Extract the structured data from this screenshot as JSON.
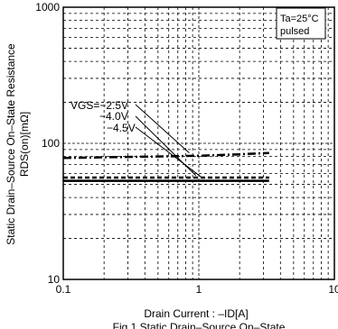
{
  "chart_data": {
    "type": "line",
    "x_scale": "log",
    "y_scale": "log",
    "xlim": [
      0.1,
      10
    ],
    "ylim": [
      10,
      1000
    ],
    "grid": true,
    "xlabel": "Drain Current : –ID[A]",
    "ylabel_line1": "Static Drain–Source On–State Resistance",
    "ylabel_line2": "RDS(on)[mΩ]",
    "conditions": [
      "Ta=25°C",
      "pulsed"
    ],
    "legend_position": "top-right",
    "x_ticks": [
      {
        "value": 0.1,
        "label": "0.1"
      },
      {
        "value": 1,
        "label": "1"
      },
      {
        "value": 10,
        "label": "10"
      }
    ],
    "y_ticks": [
      {
        "value": 10,
        "label": "10"
      },
      {
        "value": 100,
        "label": "100"
      },
      {
        "value": 1000,
        "label": "1000"
      }
    ],
    "series": [
      {
        "name": "VGS=−2.5V",
        "label": "VGS=−2.5V",
        "dash": "dashdot",
        "x": [
          0.1,
          0.2,
          0.5,
          1,
          2,
          3.3
        ],
        "y": [
          78,
          79,
          80,
          81,
          83,
          85
        ]
      },
      {
        "name": "VGS=−4.0V",
        "label": "−4.0V",
        "dash": "dashed",
        "x": [
          0.1,
          0.2,
          0.5,
          1,
          2,
          3.3
        ],
        "y": [
          56,
          56,
          56,
          56,
          56,
          56
        ]
      },
      {
        "name": "VGS=−4.5V",
        "label": "−4.5V",
        "dash": "solid",
        "x": [
          0.1,
          0.2,
          0.5,
          1,
          2,
          3.3
        ],
        "y": [
          53,
          53,
          53,
          53,
          53,
          53
        ]
      }
    ],
    "annotation_points": [
      {
        "x": 0.85,
        "y": 85
      },
      {
        "x": 0.95,
        "y": 58
      },
      {
        "x": 1.08,
        "y": 55
      }
    ]
  },
  "caption": "Fig.1 Static Drain–Source On–State"
}
